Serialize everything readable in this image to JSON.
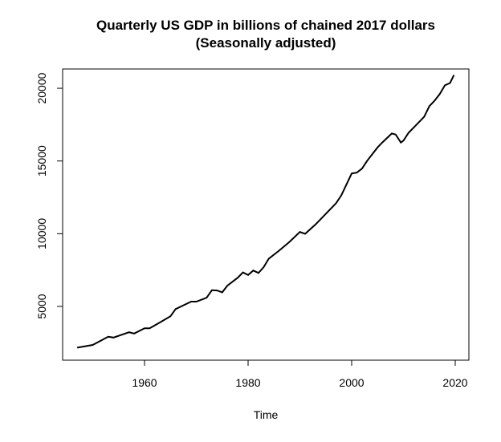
{
  "chart_data": {
    "type": "line",
    "title": "Quarterly US GDP in billions of chained 2017 dollars",
    "subtitle": "(Seasonally adjusted)",
    "xlabel": "Time",
    "ylabel": "",
    "xlim": [
      1944,
      2023
    ],
    "ylim": [
      1300,
      21700
    ],
    "x_ticks": [
      1960,
      1980,
      2000,
      2020
    ],
    "y_ticks": [
      5000,
      10000,
      15000,
      20000
    ],
    "grid": false,
    "line_color": "#000000",
    "x": [
      1947,
      1950,
      1953,
      1954,
      1957,
      1958,
      1960,
      1961,
      1963,
      1965,
      1966,
      1969,
      1970,
      1972,
      1973,
      1974,
      1975,
      1976,
      1978,
      1979,
      1980,
      1981,
      1982,
      1983,
      1984,
      1986,
      1988,
      1990,
      1991,
      1993,
      1995,
      1997,
      1998,
      2000,
      2001,
      2002,
      2003,
      2005,
      2006,
      2007.75,
      2008.5,
      2009.5,
      2010,
      2011,
      2013,
      2014,
      2015,
      2016,
      2017,
      2018,
      2019,
      2019.75
    ],
    "values": [
      2165,
      2350,
      2915,
      2860,
      3226,
      3135,
      3500,
      3500,
      3900,
      4320,
      4817,
      5330,
      5330,
      5600,
      6115,
      6100,
      5970,
      6430,
      6975,
      7340,
      7160,
      7470,
      7300,
      7700,
      8290,
      8840,
      9440,
      10120,
      9990,
      10630,
      11365,
      12100,
      12640,
      14140,
      14200,
      14475,
      15020,
      15940,
      16300,
      16890,
      16820,
      16270,
      16400,
      16940,
      17675,
      18040,
      18770,
      19140,
      19600,
      20200,
      20360,
      20910
    ]
  }
}
